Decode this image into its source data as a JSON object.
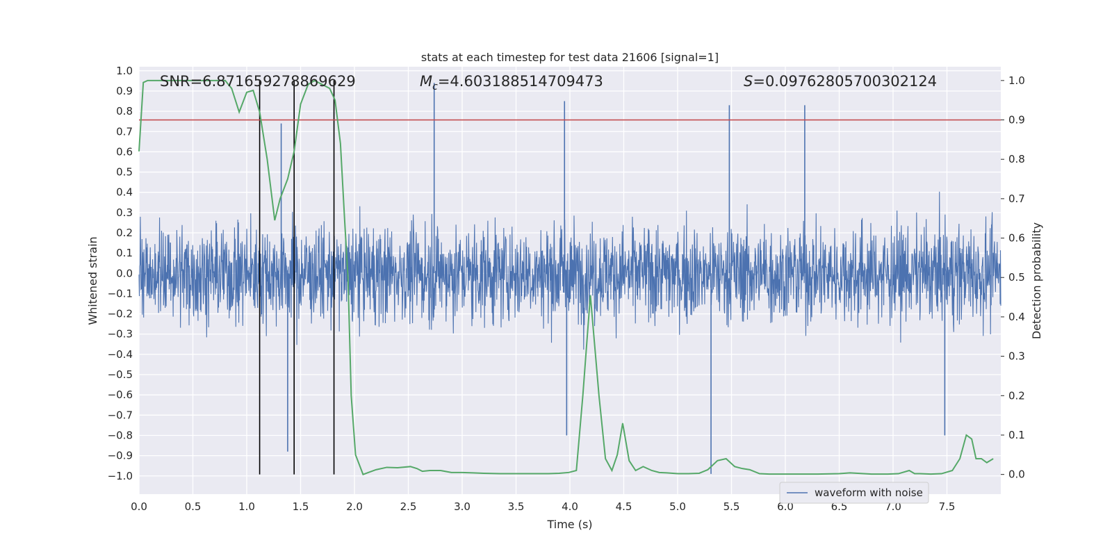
{
  "chart_data": {
    "type": "line",
    "title": "stats at each timestep for test data 21606 [signal=1]",
    "xlabel": "Time (s)",
    "ylabel_left": "Whitened strain",
    "ylabel_right": "Detection probability",
    "xlim": [
      0.0,
      8.0
    ],
    "ylim_left": [
      -1.09,
      1.02
    ],
    "ylim_right": [
      -0.05,
      1.035
    ],
    "x_ticks": [
      "0.0",
      "0.5",
      "1.0",
      "1.5",
      "2.0",
      "2.5",
      "3.0",
      "3.5",
      "4.0",
      "4.5",
      "5.0",
      "5.5",
      "6.0",
      "6.5",
      "7.0",
      "7.5"
    ],
    "y_left_ticks": [
      "1.0",
      "0.9",
      "0.8",
      "0.7",
      "0.6",
      "0.5",
      "0.4",
      "0.3",
      "0.2",
      "0.1",
      "0.0",
      "−0.1",
      "−0.2",
      "−0.3",
      "−0.4",
      "−0.5",
      "−0.6",
      "−0.7",
      "−0.8",
      "−0.9",
      "−1.0"
    ],
    "y_right_ticks": [
      "1.0",
      "0.9",
      "0.8",
      "0.7",
      "0.6",
      "0.5",
      "0.4",
      "0.3",
      "0.2",
      "0.1",
      "0.0"
    ],
    "annotations": {
      "snr": "SNR=6.871659278869629",
      "mc_symbol": "M",
      "mc_sub": "c",
      "mc_value": "=4.603188514709473",
      "s_symbol": "S",
      "s_value": "=0.09762805700302124"
    },
    "legend": {
      "label": "waveform with noise",
      "position": "lower-right"
    },
    "threshold": {
      "value": 0.9,
      "axis": "right",
      "color": "#c44e52"
    },
    "vertical_lines": {
      "x": [
        1.12,
        1.44,
        1.81
      ],
      "color": "#000000"
    },
    "waveform": {
      "name": "waveform with noise",
      "color": "#4c72b0",
      "description": "dense noisy whitened strain, roughly uniform amplitude",
      "envelope_upper": 0.45,
      "envelope_lower": -0.48,
      "notable_peaks": [
        {
          "x": 2.74,
          "y": 0.94
        },
        {
          "x": 3.95,
          "y": 0.85
        },
        {
          "x": 5.48,
          "y": 0.83
        },
        {
          "x": 6.18,
          "y": 0.83
        },
        {
          "x": 1.32,
          "y": 0.74
        }
      ],
      "notable_troughs": [
        {
          "x": 1.38,
          "y": -0.88
        },
        {
          "x": 5.31,
          "y": -0.99
        },
        {
          "x": 7.48,
          "y": -0.8
        },
        {
          "x": 3.97,
          "y": -0.8
        }
      ]
    },
    "detection_probability": {
      "name": "detection probability",
      "color": "#55a868",
      "x": [
        0.0,
        0.04,
        0.08,
        0.12,
        0.3,
        0.5,
        0.7,
        0.8,
        0.86,
        0.93,
        1.0,
        1.06,
        1.12,
        1.19,
        1.26,
        1.31,
        1.38,
        1.44,
        1.5,
        1.57,
        1.63,
        1.7,
        1.77,
        1.82,
        1.87,
        1.91,
        1.94,
        1.97,
        2.01,
        2.08,
        2.13,
        2.2,
        2.3,
        2.4,
        2.52,
        2.58,
        2.63,
        2.7,
        2.8,
        2.9,
        3.0,
        3.1,
        3.2,
        3.35,
        3.5,
        3.65,
        3.8,
        3.9,
        3.99,
        4.06,
        4.12,
        4.19,
        4.27,
        4.33,
        4.39,
        4.44,
        4.49,
        4.55,
        4.61,
        4.68,
        4.76,
        4.83,
        4.9,
        5.0,
        5.1,
        5.2,
        5.28,
        5.37,
        5.45,
        5.53,
        5.6,
        5.67,
        5.76,
        5.85,
        5.95,
        6.1,
        6.3,
        6.5,
        6.6,
        6.8,
        6.95,
        7.05,
        7.15,
        7.2,
        7.25,
        7.35,
        7.45,
        7.55,
        7.62,
        7.68,
        7.73,
        7.77,
        7.82,
        7.87,
        7.93
      ],
      "y": [
        0.82,
        0.995,
        1.0,
        1.0,
        1.0,
        1.0,
        1.0,
        1.0,
        0.98,
        0.92,
        0.97,
        0.975,
        0.92,
        0.8,
        0.645,
        0.7,
        0.75,
        0.82,
        0.94,
        0.99,
        1.0,
        0.99,
        0.98,
        0.95,
        0.84,
        0.64,
        0.5,
        0.2,
        0.05,
        0.0,
        0.005,
        0.012,
        0.018,
        0.017,
        0.02,
        0.015,
        0.008,
        0.01,
        0.01,
        0.005,
        0.005,
        0.004,
        0.003,
        0.002,
        0.002,
        0.002,
        0.002,
        0.003,
        0.005,
        0.01,
        0.2,
        0.455,
        0.2,
        0.04,
        0.01,
        0.05,
        0.13,
        0.035,
        0.01,
        0.02,
        0.01,
        0.005,
        0.004,
        0.002,
        0.002,
        0.003,
        0.012,
        0.035,
        0.04,
        0.02,
        0.015,
        0.012,
        0.002,
        0.001,
        0.001,
        0.001,
        0.001,
        0.002,
        0.004,
        0.001,
        0.001,
        0.002,
        0.01,
        0.002,
        0.002,
        0.001,
        0.002,
        0.01,
        0.04,
        0.1,
        0.09,
        0.04,
        0.04,
        0.03,
        0.04
      ]
    }
  }
}
